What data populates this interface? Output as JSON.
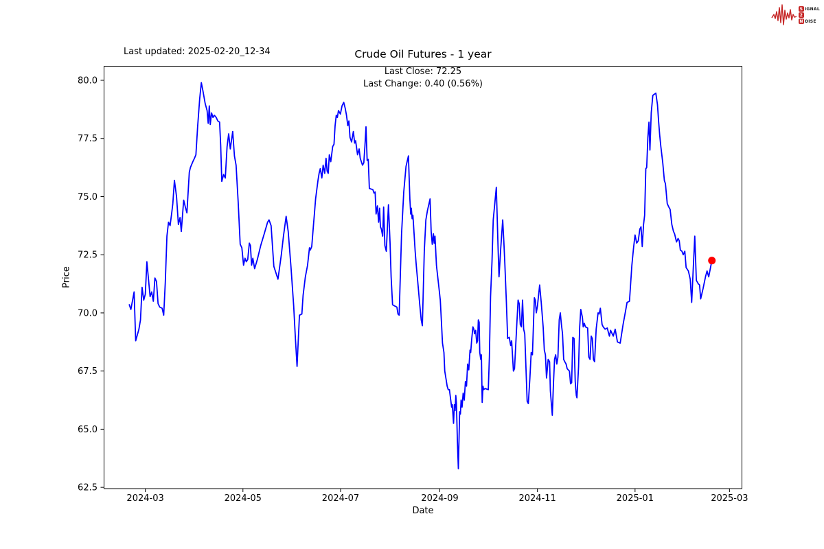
{
  "header": {
    "last_updated": "Last updated: 2025-02-20_12-34",
    "logo": {
      "brand_color": "#c62828",
      "word1_initial": "S",
      "word1_rest": "IGNAL",
      "digit": "2",
      "word2_initial": "N",
      "word2_rest": "OISE"
    }
  },
  "chart_data": {
    "type": "line",
    "title": "Crude Oil Futures - 1 year",
    "subtitle_line1": "Last Close: 72.25",
    "subtitle_line2": "Last Change: 0.40 (0.56%)",
    "xlabel": "Date",
    "ylabel": "Price",
    "last_close": 72.25,
    "last_change_abs": 0.4,
    "last_change_pct": "0.56%",
    "line_color": "#0000ff",
    "last_point_color": "#ff0000",
    "grid": false,
    "ylim": [
      62.46,
      80.62
    ],
    "x_unit": "days since 2024-02-20",
    "xlim_days": [
      -16,
      383
    ],
    "y_ticks": [
      {
        "value": 62.5,
        "label": "62.5"
      },
      {
        "value": 65.0,
        "label": "65.0"
      },
      {
        "value": 67.5,
        "label": "67.5"
      },
      {
        "value": 70.0,
        "label": "70.0"
      },
      {
        "value": 72.5,
        "label": "72.5"
      },
      {
        "value": 75.0,
        "label": "75.0"
      },
      {
        "value": 77.5,
        "label": "77.5"
      },
      {
        "value": 80.0,
        "label": "80.0"
      }
    ],
    "x_ticks": [
      {
        "day": 10,
        "label": "2024-03"
      },
      {
        "day": 71,
        "label": "2024-05"
      },
      {
        "day": 132,
        "label": "2024-07"
      },
      {
        "day": 194,
        "label": "2024-09"
      },
      {
        "day": 255,
        "label": "2024-11"
      },
      {
        "day": 316,
        "label": "2025-01"
      },
      {
        "day": 375,
        "label": "2025-03"
      }
    ],
    "points": [
      [
        0,
        70.35
      ],
      [
        1,
        70.15
      ],
      [
        3,
        70.9
      ],
      [
        4,
        68.8
      ],
      [
        6,
        69.3
      ],
      [
        7,
        69.7
      ],
      [
        8,
        71.1
      ],
      [
        9,
        70.55
      ],
      [
        10,
        70.8
      ],
      [
        11,
        72.2
      ],
      [
        13,
        70.7
      ],
      [
        14,
        70.9
      ],
      [
        15,
        70.5
      ],
      [
        16,
        71.5
      ],
      [
        17,
        71.35
      ],
      [
        18,
        70.4
      ],
      [
        19,
        70.25
      ],
      [
        20.5,
        70.2
      ],
      [
        21.5,
        69.9
      ],
      [
        22.5,
        71.3
      ],
      [
        23.5,
        73.3
      ],
      [
        24.5,
        73.9
      ],
      [
        25.5,
        73.75
      ],
      [
        26.5,
        74.3
      ],
      [
        27.2,
        74.7
      ],
      [
        28.2,
        75.7
      ],
      [
        29.5,
        75.0
      ],
      [
        30.7,
        73.8
      ],
      [
        31.7,
        74.1
      ],
      [
        32.5,
        73.5
      ],
      [
        34,
        74.85
      ],
      [
        35,
        74.55
      ],
      [
        36,
        74.3
      ],
      [
        37.5,
        76.05
      ],
      [
        38.2,
        76.25
      ],
      [
        39.7,
        76.5
      ],
      [
        40.7,
        76.65
      ],
      [
        41.6,
        76.8
      ],
      [
        42.7,
        78.0
      ],
      [
        44,
        79.2
      ],
      [
        45,
        79.9
      ],
      [
        46,
        79.55
      ],
      [
        47.4,
        79.0
      ],
      [
        48.6,
        78.7
      ],
      [
        49.3,
        78.15
      ],
      [
        50,
        78.9
      ],
      [
        50.6,
        78.1
      ],
      [
        51.4,
        78.6
      ],
      [
        52.3,
        78.4
      ],
      [
        53.1,
        78.5
      ],
      [
        54.3,
        78.4
      ],
      [
        55.3,
        78.25
      ],
      [
        56.4,
        78.2
      ],
      [
        57.1,
        77.2
      ],
      [
        57.8,
        75.65
      ],
      [
        58.9,
        75.95
      ],
      [
        60,
        75.8
      ],
      [
        61.1,
        77.15
      ],
      [
        62.1,
        77.7
      ],
      [
        63.1,
        77.05
      ],
      [
        64.6,
        77.8
      ],
      [
        65.7,
        76.75
      ],
      [
        66.7,
        76.35
      ],
      [
        68,
        74.8
      ],
      [
        69.3,
        72.95
      ],
      [
        70.3,
        72.8
      ],
      [
        71.4,
        72.05
      ],
      [
        72.3,
        72.35
      ],
      [
        73.1,
        72.2
      ],
      [
        74,
        72.3
      ],
      [
        75,
        73.0
      ],
      [
        75.7,
        72.9
      ],
      [
        76.4,
        72.05
      ],
      [
        77.2,
        72.35
      ],
      [
        78.3,
        71.9
      ],
      [
        80,
        72.3
      ],
      [
        82.1,
        72.9
      ],
      [
        84.3,
        73.4
      ],
      [
        86.4,
        73.9
      ],
      [
        87.3,
        74.0
      ],
      [
        88.6,
        73.75
      ],
      [
        90.3,
        72.0
      ],
      [
        92.9,
        71.45
      ],
      [
        93.7,
        71.85
      ],
      [
        95,
        72.5
      ],
      [
        96.3,
        73.3
      ],
      [
        98,
        74.15
      ],
      [
        99.3,
        73.5
      ],
      [
        101,
        72.0
      ],
      [
        102.7,
        70.3
      ],
      [
        103.8,
        68.9
      ],
      [
        104.8,
        67.7
      ],
      [
        106.3,
        69.9
      ],
      [
        107.8,
        69.95
      ],
      [
        108.6,
        70.75
      ],
      [
        110,
        71.55
      ],
      [
        111.4,
        72.05
      ],
      [
        112.6,
        72.8
      ],
      [
        113.1,
        72.7
      ],
      [
        114,
        72.85
      ],
      [
        115,
        73.7
      ],
      [
        115.7,
        74.3
      ],
      [
        116.4,
        74.9
      ],
      [
        117.9,
        75.7
      ],
      [
        118.6,
        76.0
      ],
      [
        119.3,
        76.2
      ],
      [
        120.3,
        75.8
      ],
      [
        121.1,
        76.35
      ],
      [
        122.1,
        76.0
      ],
      [
        122.9,
        76.65
      ],
      [
        123.6,
        76.1
      ],
      [
        124.3,
        76.0
      ],
      [
        125,
        76.8
      ],
      [
        125.9,
        76.5
      ],
      [
        127.1,
        77.15
      ],
      [
        127.9,
        77.25
      ],
      [
        128.6,
        78.05
      ],
      [
        129.3,
        78.5
      ],
      [
        130,
        78.4
      ],
      [
        130.7,
        78.7
      ],
      [
        131.9,
        78.55
      ],
      [
        132.9,
        78.9
      ],
      [
        134,
        79.05
      ],
      [
        134.9,
        78.8
      ],
      [
        135.7,
        78.5
      ],
      [
        136.5,
        78.05
      ],
      [
        137.2,
        78.25
      ],
      [
        137.9,
        77.55
      ],
      [
        138.9,
        77.35
      ],
      [
        140,
        77.8
      ],
      [
        140.8,
        77.3
      ],
      [
        141.4,
        77.4
      ],
      [
        142.6,
        76.8
      ],
      [
        143.6,
        77.05
      ],
      [
        144.3,
        76.65
      ],
      [
        145.7,
        76.35
      ],
      [
        146.5,
        76.45
      ],
      [
        147.2,
        77.15
      ],
      [
        147.9,
        78.0
      ],
      [
        148.6,
        76.55
      ],
      [
        149.3,
        76.6
      ],
      [
        150,
        75.35
      ],
      [
        152.2,
        75.3
      ],
      [
        152.9,
        75.15
      ],
      [
        153.6,
        75.2
      ],
      [
        154.2,
        74.25
      ],
      [
        155,
        74.6
      ],
      [
        155.8,
        73.9
      ],
      [
        156.4,
        74.5
      ],
      [
        156.9,
        73.7
      ],
      [
        157.5,
        73.6
      ],
      [
        158.3,
        73.3
      ],
      [
        158.9,
        74.55
      ],
      [
        159.7,
        72.9
      ],
      [
        160.6,
        72.65
      ],
      [
        161.9,
        74.65
      ],
      [
        162.9,
        73.05
      ],
      [
        163.6,
        71.55
      ],
      [
        164.5,
        70.35
      ],
      [
        165.8,
        70.3
      ],
      [
        167.2,
        70.25
      ],
      [
        167.9,
        69.95
      ],
      [
        168.6,
        69.9
      ],
      [
        170.1,
        73.4
      ],
      [
        171.5,
        75.2
      ],
      [
        172.9,
        76.3
      ],
      [
        174.4,
        76.75
      ],
      [
        175.3,
        74.9
      ],
      [
        175.8,
        74.25
      ],
      [
        176.2,
        74.5
      ],
      [
        176.7,
        74.05
      ],
      [
        177.2,
        74.2
      ],
      [
        177.6,
        73.8
      ],
      [
        178.6,
        72.65
      ],
      [
        179.3,
        72.05
      ],
      [
        180.4,
        71.2
      ],
      [
        181.5,
        70.35
      ],
      [
        182.4,
        69.7
      ],
      [
        183.1,
        69.45
      ],
      [
        184.3,
        72.65
      ],
      [
        185.3,
        74.0
      ],
      [
        186.3,
        74.4
      ],
      [
        187.9,
        74.9
      ],
      [
        188.6,
        73.5
      ],
      [
        189.3,
        72.95
      ],
      [
        190,
        73.4
      ],
      [
        190.5,
        73.0
      ],
      [
        191,
        73.3
      ],
      [
        191.9,
        72.05
      ],
      [
        192.4,
        71.75
      ],
      [
        193.3,
        71.2
      ],
      [
        194.3,
        70.55
      ],
      [
        195,
        69.65
      ],
      [
        195.7,
        68.7
      ],
      [
        196.6,
        68.3
      ],
      [
        197.1,
        67.5
      ],
      [
        197.9,
        67.15
      ],
      [
        198.6,
        66.85
      ],
      [
        199.3,
        66.7
      ],
      [
        200,
        66.7
      ],
      [
        201.4,
        65.95
      ],
      [
        201.8,
        66.05
      ],
      [
        202.6,
        65.25
      ],
      [
        203.1,
        66.05
      ],
      [
        203.6,
        65.8
      ],
      [
        204,
        66.45
      ],
      [
        204.4,
        66.1
      ],
      [
        205,
        64.5
      ],
      [
        205.6,
        63.3
      ],
      [
        206.4,
        65.75
      ],
      [
        206.9,
        65.65
      ],
      [
        207.3,
        66.25
      ],
      [
        207.9,
        65.95
      ],
      [
        208.6,
        66.55
      ],
      [
        209.3,
        66.25
      ],
      [
        210,
        67.05
      ],
      [
        210.7,
        66.85
      ],
      [
        211.4,
        67.8
      ],
      [
        212.1,
        67.55
      ],
      [
        212.9,
        68.4
      ],
      [
        213.3,
        68.3
      ],
      [
        213.9,
        68.85
      ],
      [
        214.7,
        69.4
      ],
      [
        215.3,
        69.3
      ],
      [
        215.7,
        69.1
      ],
      [
        216.4,
        69.25
      ],
      [
        217.1,
        68.7
      ],
      [
        217.6,
        68.8
      ],
      [
        218.1,
        69.7
      ],
      [
        218.6,
        69.6
      ],
      [
        219,
        68.3
      ],
      [
        219.6,
        68.0
      ],
      [
        220,
        68.2
      ],
      [
        220.5,
        66.15
      ],
      [
        221,
        66.85
      ],
      [
        221.4,
        66.7
      ],
      [
        222.3,
        66.75
      ],
      [
        224.3,
        66.7
      ],
      [
        225,
        68.1
      ],
      [
        225.7,
        70.7
      ],
      [
        226.6,
        72.2
      ],
      [
        227.4,
        74.0
      ],
      [
        229.3,
        75.4
      ],
      [
        230.4,
        72.85
      ],
      [
        231,
        71.55
      ],
      [
        232.1,
        72.8
      ],
      [
        233.3,
        74.0
      ],
      [
        234,
        73.1
      ],
      [
        234.6,
        72.2
      ],
      [
        235.6,
        70.5
      ],
      [
        236.4,
        68.9
      ],
      [
        237.4,
        68.95
      ],
      [
        238.3,
        68.6
      ],
      [
        238.9,
        68.8
      ],
      [
        240,
        67.5
      ],
      [
        240.7,
        67.6
      ],
      [
        242.1,
        69.5
      ],
      [
        242.9,
        70.55
      ],
      [
        243.6,
        70.4
      ],
      [
        244.3,
        69.5
      ],
      [
        245,
        69.4
      ],
      [
        245.7,
        70.55
      ],
      [
        246.4,
        69.3
      ],
      [
        247.1,
        69.1
      ],
      [
        248.6,
        66.2
      ],
      [
        249.3,
        66.1
      ],
      [
        250.3,
        67.2
      ],
      [
        251.1,
        68.3
      ],
      [
        251.9,
        68.2
      ],
      [
        253.1,
        70.65
      ],
      [
        253.7,
        70.55
      ],
      [
        254.3,
        70.0
      ],
      [
        255,
        70.3
      ],
      [
        256.4,
        71.2
      ],
      [
        257.4,
        70.45
      ],
      [
        258.6,
        69.4
      ],
      [
        259.3,
        68.4
      ],
      [
        260,
        68.2
      ],
      [
        260.7,
        67.2
      ],
      [
        261.7,
        68.0
      ],
      [
        262.6,
        67.9
      ],
      [
        263.1,
        66.65
      ],
      [
        264.3,
        65.6
      ],
      [
        265,
        66.95
      ],
      [
        265.7,
        68.0
      ],
      [
        266.4,
        68.2
      ],
      [
        267.1,
        67.8
      ],
      [
        267.8,
        68.1
      ],
      [
        268.6,
        69.7
      ],
      [
        269.3,
        70.0
      ],
      [
        270,
        69.5
      ],
      [
        270.7,
        69.1
      ],
      [
        271.4,
        68.0
      ],
      [
        272.1,
        67.9
      ],
      [
        272.9,
        67.8
      ],
      [
        273.6,
        67.6
      ],
      [
        274.3,
        67.55
      ],
      [
        275,
        67.5
      ],
      [
        275.7,
        66.95
      ],
      [
        276.4,
        67.0
      ],
      [
        277.1,
        68.95
      ],
      [
        277.9,
        68.9
      ],
      [
        278.6,
        67.05
      ],
      [
        279.3,
        66.45
      ],
      [
        279.7,
        66.35
      ],
      [
        280.7,
        67.7
      ],
      [
        281.4,
        69.4
      ],
      [
        282.1,
        70.15
      ],
      [
        283.1,
        69.8
      ],
      [
        283.6,
        69.4
      ],
      [
        284.3,
        69.55
      ],
      [
        285,
        69.4
      ],
      [
        286.4,
        69.35
      ],
      [
        287.1,
        68.1
      ],
      [
        287.9,
        68.0
      ],
      [
        288.6,
        69.0
      ],
      [
        289.3,
        68.9
      ],
      [
        290,
        68.0
      ],
      [
        290.7,
        67.9
      ],
      [
        291.7,
        69.3
      ],
      [
        292.9,
        70.0
      ],
      [
        293.6,
        69.95
      ],
      [
        294.3,
        70.2
      ],
      [
        295.4,
        69.5
      ],
      [
        296.1,
        69.4
      ],
      [
        297.3,
        69.3
      ],
      [
        298.6,
        69.35
      ],
      [
        300,
        69.0
      ],
      [
        300.7,
        69.25
      ],
      [
        302.4,
        69.0
      ],
      [
        303.6,
        69.3
      ],
      [
        305,
        68.75
      ],
      [
        306.7,
        68.7
      ],
      [
        308.5,
        69.5
      ],
      [
        310,
        70.05
      ],
      [
        311,
        70.45
      ],
      [
        312.5,
        70.5
      ],
      [
        314,
        72.05
      ],
      [
        315,
        72.75
      ],
      [
        316,
        73.35
      ],
      [
        317,
        73.0
      ],
      [
        318,
        73.1
      ],
      [
        319,
        73.6
      ],
      [
        319.7,
        73.7
      ],
      [
        320.5,
        72.85
      ],
      [
        321.3,
        73.8
      ],
      [
        322,
        74.2
      ],
      [
        322.7,
        76.2
      ],
      [
        323.3,
        76.25
      ],
      [
        324,
        77.55
      ],
      [
        324.7,
        78.2
      ],
      [
        325.3,
        77.0
      ],
      [
        326.1,
        78.6
      ],
      [
        327.1,
        79.35
      ],
      [
        329,
        79.45
      ],
      [
        330,
        78.95
      ],
      [
        330.7,
        78.25
      ],
      [
        331.4,
        77.65
      ],
      [
        332.1,
        77.15
      ],
      [
        333.3,
        76.45
      ],
      [
        334.3,
        75.7
      ],
      [
        335,
        75.55
      ],
      [
        336.1,
        74.7
      ],
      [
        337.1,
        74.55
      ],
      [
        337.9,
        74.45
      ],
      [
        339,
        73.8
      ],
      [
        340,
        73.5
      ],
      [
        340.7,
        73.4
      ],
      [
        341.9,
        73.05
      ],
      [
        342.9,
        73.2
      ],
      [
        343.6,
        73.1
      ],
      [
        344.3,
        72.7
      ],
      [
        345.3,
        72.65
      ],
      [
        346.1,
        72.5
      ],
      [
        347.1,
        72.65
      ],
      [
        347.9,
        71.95
      ],
      [
        349.3,
        71.8
      ],
      [
        350.5,
        71.45
      ],
      [
        351.4,
        70.45
      ],
      [
        353.3,
        73.3
      ],
      [
        354.3,
        71.4
      ],
      [
        355.5,
        71.25
      ],
      [
        356.3,
        71.2
      ],
      [
        357,
        70.6
      ],
      [
        358.5,
        71.05
      ],
      [
        360,
        71.55
      ],
      [
        361,
        71.8
      ],
      [
        362,
        71.55
      ],
      [
        364,
        72.25
      ]
    ]
  }
}
